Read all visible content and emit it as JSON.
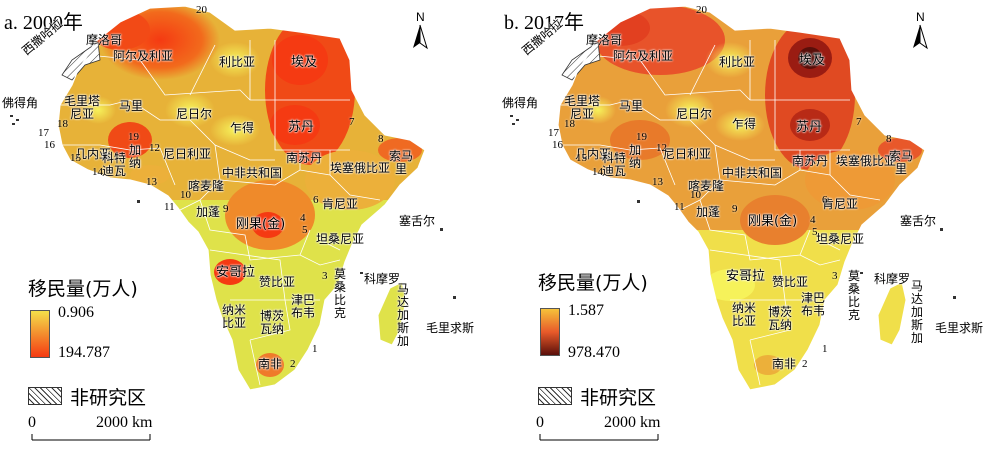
{
  "panels": [
    {
      "title": "a. 2000年",
      "legend": {
        "title": "移民量(万人)",
        "min": "0.906",
        "max": "194.787",
        "color_low": "#f4e04a",
        "color_high": "#f53a12"
      },
      "hotspots": [
        "阿尔及利亚",
        "摩洛哥",
        "埃及",
        "苏丹",
        "安哥拉",
        "刚果(金)",
        "马里"
      ]
    },
    {
      "title": "b. 2017年",
      "legend": {
        "title": "移民量(万人)",
        "min": "1.587",
        "max": "978.470",
        "color_low": "#f6c23a",
        "color_high": "#5a0f0a"
      },
      "hotspots": [
        "埃及",
        "苏丹",
        "摩洛哥",
        "阿尔及利亚"
      ]
    }
  ],
  "hatch_label": "非研究区",
  "scale": {
    "zero": "0",
    "distance": "2000 km"
  },
  "north": "N",
  "countries": {
    "xisahala": "西撒哈拉",
    "moroco": "摩洛哥",
    "algeria": "阿尔及利亚",
    "libya": "利比亚",
    "egypt": "埃及",
    "capeverde": "佛得角",
    "mauritania": "毛里塔尼亚",
    "mali": "马里",
    "niger": "尼日尔",
    "chad": "乍得",
    "sudan": "苏丹",
    "guinea": "几内亚",
    "cotedivoire": "科特迪瓦",
    "ghana": "加纳",
    "nigeria": "尼日利亚",
    "car": "中非共和国",
    "southsudan": "南苏丹",
    "ethiopia": "埃塞俄比亚",
    "somalia": "索马里",
    "cameroon": "喀麦隆",
    "gabon": "加蓬",
    "drc": "刚果(金)",
    "kenya": "肯尼亚",
    "tanzania": "坦桑尼亚",
    "seychelles": "塞舌尔",
    "angola": "安哥拉",
    "zambia": "赞比亚",
    "mozambique": "莫桑比克",
    "comoros": "科摩罗",
    "madagascar": "马达加斯加",
    "namibia": "纳米比亚",
    "botswana": "博茨瓦纳",
    "zimbabwe": "津巴布韦",
    "mauritius": "毛里求斯",
    "southafrica": "南非"
  },
  "numbers": [
    "20",
    "17",
    "18",
    "16",
    "15",
    "14",
    "19",
    "12",
    "13",
    "10",
    "11",
    "9",
    "7",
    "8",
    "6",
    "4",
    "5",
    "3",
    "1",
    "2"
  ]
}
